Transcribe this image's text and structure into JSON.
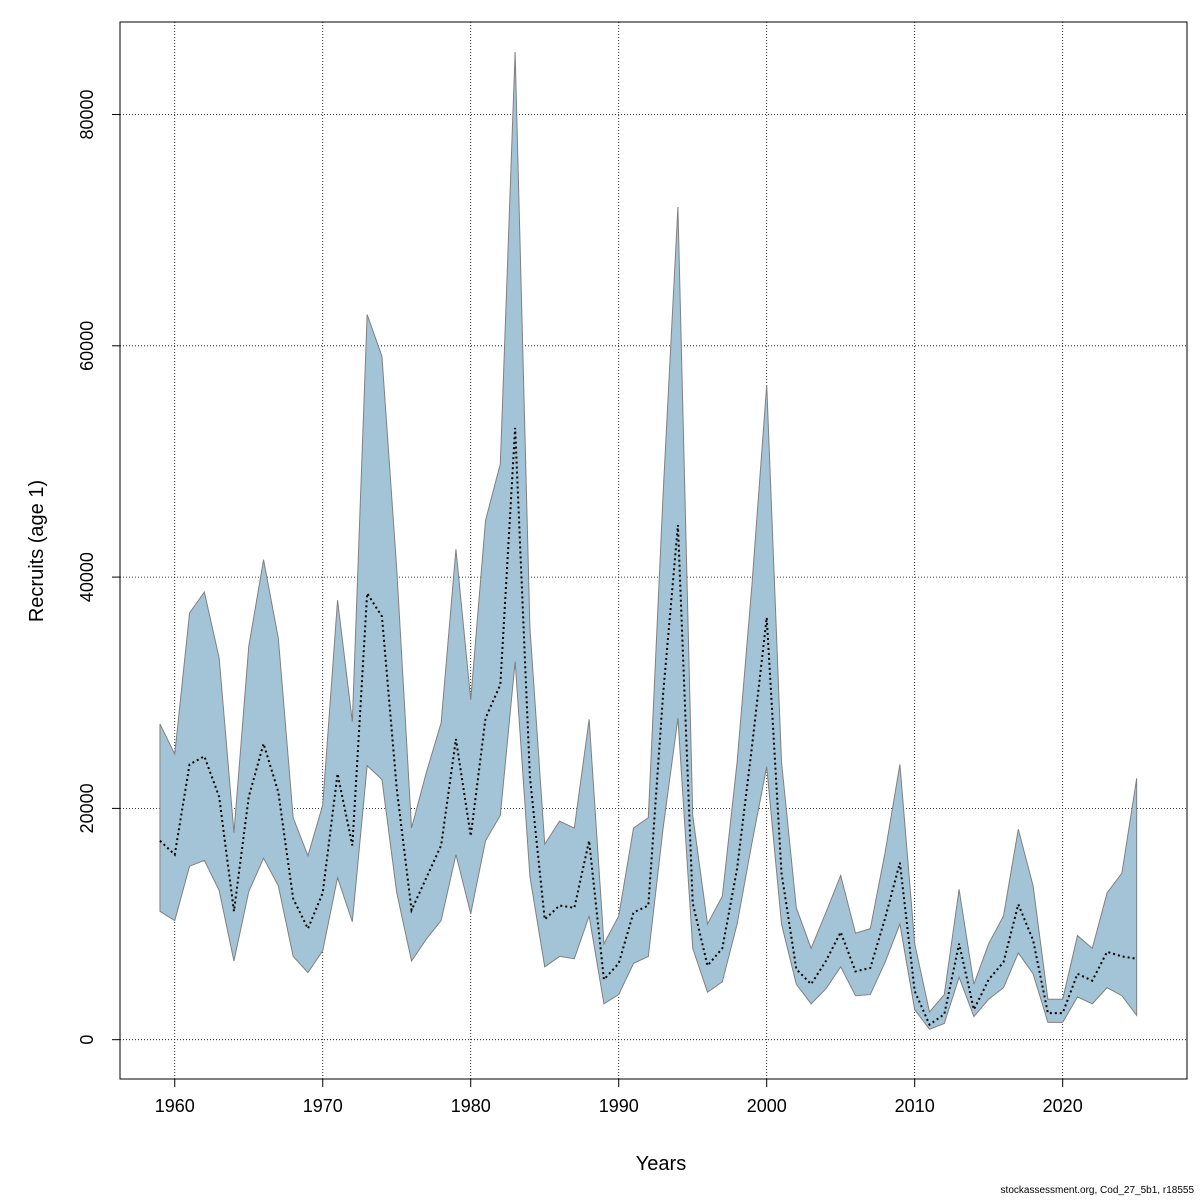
{
  "chart_data": {
    "type": "area",
    "xlabel": "Years",
    "ylabel": "Recruits (age 1)",
    "xlim": [
      1956.3,
      2028.4
    ],
    "ylim": [
      -3400,
      88000
    ],
    "xticks": [
      1960,
      1970,
      1980,
      1990,
      2000,
      2010,
      2020
    ],
    "yticks": [
      0,
      20000,
      40000,
      60000,
      80000
    ],
    "grid": true,
    "band_color": "#a3c4d6",
    "band_edge_color": "#808080",
    "line_color": "#000000",
    "x": [
      1959,
      1960,
      1961,
      1962,
      1963,
      1964,
      1965,
      1966,
      1967,
      1968,
      1969,
      1970,
      1971,
      1972,
      1973,
      1974,
      1975,
      1976,
      1977,
      1978,
      1979,
      1980,
      1981,
      1982,
      1983,
      1984,
      1985,
      1986,
      1987,
      1988,
      1989,
      1990,
      1991,
      1992,
      1993,
      1994,
      1995,
      1996,
      1997,
      1998,
      1999,
      2000,
      2001,
      2002,
      2003,
      2004,
      2005,
      2006,
      2007,
      2008,
      2009,
      2010,
      2011,
      2012,
      2013,
      2014,
      2015,
      2016,
      2017,
      2018,
      2019,
      2020,
      2021,
      2022,
      2023,
      2024,
      2025
    ],
    "series": [
      {
        "role": "estimate",
        "style": "dotted",
        "values": [
          17200,
          16000,
          23800,
          24500,
          21000,
          11100,
          21000,
          25600,
          21400,
          12200,
          9600,
          12700,
          23000,
          16800,
          38600,
          36600,
          21700,
          11200,
          14000,
          16800,
          26000,
          17600,
          27800,
          30700,
          52900,
          22700,
          10400,
          11600,
          11400,
          17200,
          5200,
          6600,
          11000,
          11600,
          29900,
          44500,
          11800,
          6400,
          7900,
          14800,
          25300,
          36500,
          14400,
          6100,
          4800,
          6800,
          9300,
          5900,
          6200,
          10500,
          15300,
          4200,
          1300,
          2200,
          8300,
          2600,
          5200,
          6700,
          11700,
          8600,
          2300,
          2300,
          5700,
          5100,
          7600,
          7200,
          7000
        ]
      },
      {
        "role": "upper",
        "values": [
          27300,
          24700,
          36900,
          38700,
          33000,
          17900,
          34000,
          41500,
          34700,
          19200,
          15900,
          20300,
          38000,
          27500,
          62700,
          59100,
          40700,
          18300,
          23100,
          27400,
          42400,
          29400,
          44900,
          49800,
          85400,
          35600,
          16900,
          18900,
          18300,
          27700,
          8300,
          10700,
          18300,
          19200,
          47200,
          72000,
          19400,
          10000,
          12400,
          24000,
          39300,
          56600,
          24000,
          11400,
          7900,
          11000,
          14200,
          9200,
          9600,
          16200,
          23800,
          8300,
          2400,
          3900,
          13000,
          4800,
          8300,
          10700,
          18200,
          13300,
          3500,
          3500,
          9000,
          7900,
          12700,
          14400,
          22600
        ]
      },
      {
        "role": "lower",
        "values": [
          11100,
          10300,
          15000,
          15500,
          12900,
          6800,
          12800,
          15700,
          13300,
          7200,
          5800,
          7700,
          14000,
          10200,
          23700,
          22500,
          12700,
          6800,
          8700,
          10300,
          16000,
          10900,
          17200,
          19400,
          32700,
          14100,
          6300,
          7200,
          7000,
          10700,
          3100,
          3900,
          6600,
          7200,
          18300,
          27800,
          7900,
          4100,
          5000,
          10000,
          17000,
          23600,
          10000,
          4800,
          3100,
          4400,
          6300,
          3800,
          3900,
          6700,
          10000,
          2600,
          900,
          1400,
          5400,
          2000,
          3500,
          4500,
          7500,
          5700,
          1500,
          1500,
          3700,
          3100,
          4500,
          3800,
          2100
        ]
      }
    ]
  },
  "footer": "stockassessment.org, Cod_27_5b1, r18555"
}
